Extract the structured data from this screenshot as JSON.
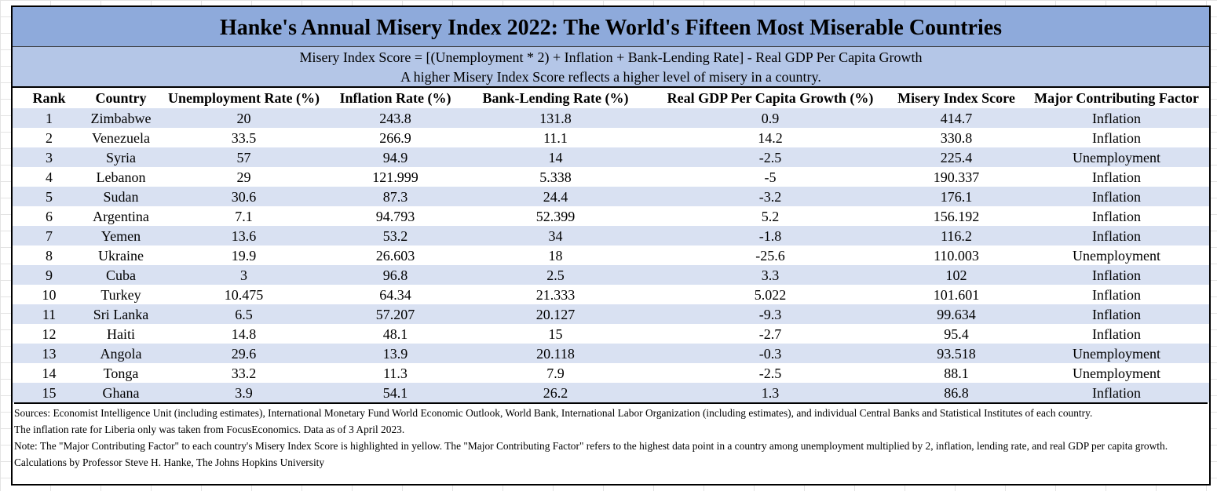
{
  "header": {
    "title": "Hanke's Annual Misery Index 2022: The World's Fifteen Most Miserable Countries",
    "subtitle": [
      "Misery Index Score = [(Unemployment * 2) + Inflation + Bank-Lending Rate] - Real GDP Per Capita Growth",
      "A higher Misery Index Score reflects a higher level of misery in a country."
    ]
  },
  "table": {
    "columns": [
      "Rank",
      "Country",
      "Unemployment Rate (%)",
      "Inflation Rate (%)",
      "Bank-Lending Rate (%)",
      "Real GDP Per Capita Growth (%)",
      "Misery Index Score",
      "Major Contributing Factor"
    ],
    "rows": [
      [
        "1",
        "Zimbabwe",
        "20",
        "243.8",
        "131.8",
        "0.9",
        "414.7",
        "Inflation"
      ],
      [
        "2",
        "Venezuela",
        "33.5",
        "266.9",
        "11.1",
        "14.2",
        "330.8",
        "Inflation"
      ],
      [
        "3",
        "Syria",
        "57",
        "94.9",
        "14",
        "-2.5",
        "225.4",
        "Unemployment"
      ],
      [
        "4",
        "Lebanon",
        "29",
        "121.999",
        "5.338",
        "-5",
        "190.337",
        "Inflation"
      ],
      [
        "5",
        "Sudan",
        "30.6",
        "87.3",
        "24.4",
        "-3.2",
        "176.1",
        "Inflation"
      ],
      [
        "6",
        "Argentina",
        "7.1",
        "94.793",
        "52.399",
        "5.2",
        "156.192",
        "Inflation"
      ],
      [
        "7",
        "Yemen",
        "13.6",
        "53.2",
        "34",
        "-1.8",
        "116.2",
        "Inflation"
      ],
      [
        "8",
        "Ukraine",
        "19.9",
        "26.603",
        "18",
        "-25.6",
        "110.003",
        "Unemployment"
      ],
      [
        "9",
        "Cuba",
        "3",
        "96.8",
        "2.5",
        "3.3",
        "102",
        "Inflation"
      ],
      [
        "10",
        "Turkey",
        "10.475",
        "64.34",
        "21.333",
        "5.022",
        "101.601",
        "Inflation"
      ],
      [
        "11",
        "Sri Lanka",
        "6.5",
        "57.207",
        "20.127",
        "-9.3",
        "99.634",
        "Inflation"
      ],
      [
        "12",
        "Haiti",
        "14.8",
        "48.1",
        "15",
        "-2.7",
        "95.4",
        "Inflation"
      ],
      [
        "13",
        "Angola",
        "29.6",
        "13.9",
        "20.118",
        "-0.3",
        "93.518",
        "Unemployment"
      ],
      [
        "14",
        "Tonga",
        "33.2",
        "11.3",
        "7.9",
        "-2.5",
        "88.1",
        "Unemployment"
      ],
      [
        "15",
        "Ghana",
        "3.9",
        "54.1",
        "26.2",
        "1.3",
        "86.8",
        "Inflation"
      ]
    ]
  },
  "notes": [
    "Sources: Economist Intelligence Unit (including estimates), International Monetary Fund World Economic Outlook, World Bank, International Labor Organization (including estimates), and individual Central Banks and Statistical Institutes of each country.",
    "The inflation rate for Liberia only was taken from FocusEconomics. Data as of 3 April 2023.",
    "Note: The \"Major Contributing Factor\" to each country's Misery Index Score is highlighted in yellow. The \"Major Contributing Factor\" refers to the highest data point in a country among unemployment multiplied by 2, inflation, lending rate, and real GDP per capita growth.",
    "Calculations by Professor Steve H. Hanke, The Johns Hopkins University"
  ]
}
